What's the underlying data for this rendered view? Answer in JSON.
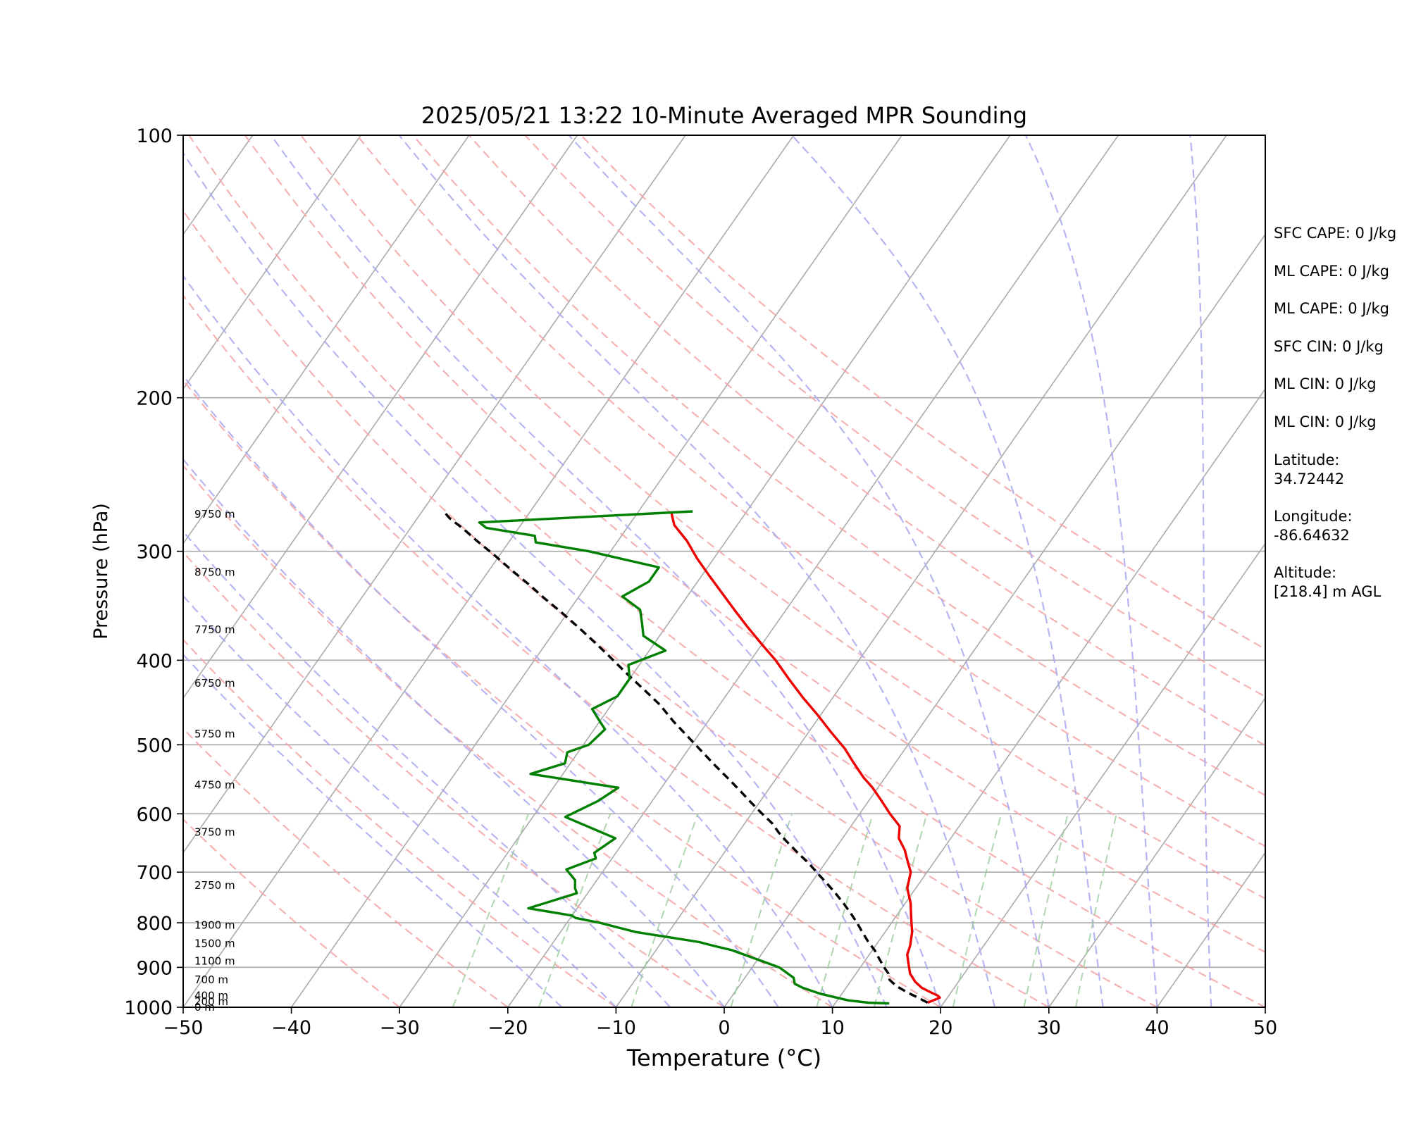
{
  "chart_data": {
    "type": "line",
    "title": "2025/05/21 13:22 10-Minute Averaged MPR Sounding",
    "xlabel": "Temperature (°C)",
    "ylabel": "Pressure (hPa)",
    "xlim": [
      -50,
      50
    ],
    "ylim": [
      1000,
      100
    ],
    "yscale": "log",
    "x_ticks": [
      "−50",
      "−40",
      "−30",
      "−20",
      "−10",
      "0",
      "10",
      "20",
      "30",
      "40",
      "50"
    ],
    "y_ticks": [
      {
        "p": 1000,
        "label": "1000"
      },
      {
        "p": 900,
        "label": "900"
      },
      {
        "p": 800,
        "label": "800"
      },
      {
        "p": 700,
        "label": "700"
      },
      {
        "p": 600,
        "label": "600"
      },
      {
        "p": 500,
        "label": "500"
      },
      {
        "p": 400,
        "label": "400"
      },
      {
        "p": 300,
        "label": "300"
      },
      {
        "p": 200,
        "label": "200"
      },
      {
        "p": 100,
        "label": "100"
      }
    ],
    "skew": 0.7,
    "background_lines": {
      "isotherm_color": "#aaaaaa",
      "dry_adiabat_color": "#f4a5a5",
      "moist_adiabat_color": "#a8a8f0",
      "mixing_ratio_color": "#9ccc9c",
      "dry_adiabat_theta_c": [
        -30,
        -20,
        -10,
        0,
        10,
        20,
        30,
        40,
        50,
        60,
        70,
        80,
        90,
        100,
        110,
        120
      ],
      "moist_adiabat_start_c": [
        -15,
        -10,
        -5,
        0,
        5,
        10,
        15,
        20,
        25,
        30,
        35,
        40,
        45
      ],
      "mixing_ratio_g_kg": [
        0.5,
        1,
        2,
        4,
        7,
        10,
        16,
        24,
        32
      ]
    },
    "series": [
      {
        "key": "temperature",
        "color": "#ee0000",
        "points": [
          [
            18.5,
            988
          ],
          [
            19.0,
            980
          ],
          [
            19.3,
            975
          ],
          [
            19.0,
            970
          ],
          [
            18.0,
            960
          ],
          [
            17.0,
            950
          ],
          [
            16.0,
            935
          ],
          [
            15.0,
            915
          ],
          [
            14.5,
            900
          ],
          [
            14.0,
            885
          ],
          [
            13.5,
            870
          ],
          [
            13.2,
            850
          ],
          [
            12.5,
            820
          ],
          [
            11.5,
            790
          ],
          [
            10.5,
            760
          ],
          [
            9.2,
            730
          ],
          [
            8.5,
            700
          ],
          [
            7.5,
            680
          ],
          [
            6.5,
            660
          ],
          [
            5.2,
            640
          ],
          [
            4.5,
            620
          ],
          [
            2.8,
            600
          ],
          [
            1.2,
            580
          ],
          [
            -0.5,
            560
          ],
          [
            -2.0,
            545
          ],
          [
            -3.8,
            525
          ],
          [
            -5.6,
            505
          ],
          [
            -8.0,
            483
          ],
          [
            -10.3,
            462
          ],
          [
            -12.7,
            442
          ],
          [
            -15.3,
            420
          ],
          [
            -17.7,
            400
          ],
          [
            -19.8,
            385
          ],
          [
            -22.5,
            366
          ],
          [
            -24.5,
            352
          ],
          [
            -27.0,
            335
          ],
          [
            -29.3,
            320
          ],
          [
            -31.5,
            306
          ],
          [
            -33.6,
            292
          ],
          [
            -35.8,
            280
          ],
          [
            -37.0,
            270
          ]
        ]
      },
      {
        "key": "parcel",
        "color": "#000000",
        "points": [
          [
            18.5,
            988
          ],
          [
            17.3,
            975
          ],
          [
            16.0,
            962
          ],
          [
            14.5,
            945
          ],
          [
            13.5,
            930
          ],
          [
            13.0,
            915
          ],
          [
            12.2,
            900
          ],
          [
            11.2,
            880
          ],
          [
            10.2,
            860
          ],
          [
            9.0,
            840
          ],
          [
            7.9,
            820
          ],
          [
            6.8,
            800
          ],
          [
            5.6,
            780
          ],
          [
            4.3,
            760
          ],
          [
            2.9,
            740
          ],
          [
            1.4,
            720
          ],
          [
            0.2,
            705
          ],
          [
            -1.4,
            685
          ],
          [
            -3.2,
            665
          ],
          [
            -5.0,
            645
          ],
          [
            -6.3,
            630
          ],
          [
            -7.5,
            615
          ],
          [
            -9.0,
            600
          ],
          [
            -10.8,
            582
          ],
          [
            -12.6,
            564
          ],
          [
            -14.5,
            546
          ],
          [
            -16.5,
            528
          ],
          [
            -18.5,
            510
          ],
          [
            -20.8,
            490
          ],
          [
            -23.2,
            470
          ],
          [
            -25.5,
            450
          ],
          [
            -28.0,
            432
          ],
          [
            -30.5,
            415
          ],
          [
            -33.0,
            398
          ],
          [
            -35.5,
            382
          ],
          [
            -38.0,
            367
          ],
          [
            -40.5,
            353
          ],
          [
            -43.0,
            340
          ],
          [
            -45.5,
            327
          ],
          [
            -48.0,
            315
          ],
          [
            -50.5,
            303
          ],
          [
            -53.0,
            292
          ],
          [
            -55.0,
            283
          ],
          [
            -57.0,
            275
          ],
          [
            -58.0,
            270
          ]
        ]
      },
      {
        "key": "dewpoint",
        "color": "#008000",
        "points": [
          [
            15.0,
            990
          ],
          [
            13.0,
            988
          ],
          [
            11.0,
            982
          ],
          [
            8.0,
            965
          ],
          [
            6.0,
            950
          ],
          [
            5.0,
            940
          ],
          [
            4.5,
            925
          ],
          [
            2.5,
            900
          ],
          [
            -3.0,
            860
          ],
          [
            -5.0,
            850
          ],
          [
            -6.5,
            842
          ],
          [
            -10.0,
            830
          ],
          [
            -13.0,
            820
          ],
          [
            -17.0,
            800
          ],
          [
            -19.5,
            790
          ],
          [
            -20.0,
            785
          ],
          [
            -24.5,
            770
          ],
          [
            -21.0,
            740
          ],
          [
            -21.5,
            730
          ],
          [
            -22.0,
            715
          ],
          [
            -23.5,
            695
          ],
          [
            -21.5,
            675
          ],
          [
            -22.0,
            665
          ],
          [
            -21.0,
            640
          ],
          [
            -27.0,
            605
          ],
          [
            -25.0,
            580
          ],
          [
            -24.0,
            560
          ],
          [
            -33.0,
            540
          ],
          [
            -30.5,
            525
          ],
          [
            -31.0,
            510
          ],
          [
            -29.5,
            500
          ],
          [
            -29.0,
            480
          ],
          [
            -30.0,
            470
          ],
          [
            -31.5,
            455
          ],
          [
            -30.0,
            440
          ],
          [
            -30.0,
            420
          ],
          [
            -31.0,
            405
          ],
          [
            -28.5,
            390
          ],
          [
            -31.5,
            375
          ],
          [
            -32.5,
            362
          ],
          [
            -33.5,
            350
          ],
          [
            -36.0,
            338
          ],
          [
            -34.5,
            325
          ],
          [
            -34.5,
            313
          ],
          [
            -42.0,
            300
          ],
          [
            -47.5,
            293
          ],
          [
            -48.0,
            288
          ],
          [
            -53.0,
            282
          ],
          [
            -54.0,
            278
          ],
          [
            -35.0,
            270
          ]
        ]
      }
    ],
    "height_labels": [
      {
        "p": 1000,
        "text": "0 m"
      },
      {
        "p": 985,
        "text": "200 m"
      },
      {
        "p": 970,
        "text": "400 m"
      },
      {
        "p": 930,
        "text": "700 m"
      },
      {
        "p": 885,
        "text": "1100 m"
      },
      {
        "p": 845,
        "text": "1500 m"
      },
      {
        "p": 805,
        "text": "1900 m"
      },
      {
        "p": 725,
        "text": "2750 m"
      },
      {
        "p": 630,
        "text": "3750 m"
      },
      {
        "p": 556,
        "text": "4750 m"
      },
      {
        "p": 486,
        "text": "5750 m"
      },
      {
        "p": 425,
        "text": "6750 m"
      },
      {
        "p": 369,
        "text": "7750 m"
      },
      {
        "p": 317,
        "text": "8750 m"
      },
      {
        "p": 272,
        "text": "9750 m"
      }
    ],
    "annotations": [
      [
        "SFC CAPE: 0 J/kg"
      ],
      [
        "ML CAPE: 0 J/kg"
      ],
      [
        "ML CAPE: 0 J/kg"
      ],
      [
        "SFC CIN: 0 J/kg"
      ],
      [
        "ML CIN: 0 J/kg"
      ],
      [
        "ML CIN: 0 J/kg"
      ],
      [
        "Latitude:",
        "34.72442"
      ],
      [
        "Longitude:",
        "-86.64632"
      ],
      [
        "Altitude:",
        "[218.4] m AGL"
      ]
    ]
  }
}
